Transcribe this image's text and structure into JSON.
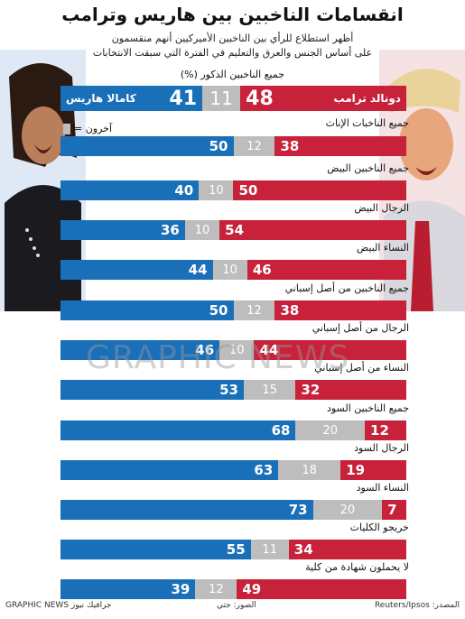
{
  "title": "انقسامات الناخبين بين هاريس وترامب",
  "subtitle_lines": [
    "أظهر استطلاع للرأي بين الناخبين الأميركيين أنهم منقسمون",
    "على أساس الجنس والعرق والتعليم في الفترة التي سبقت الانتخابات"
  ],
  "legend_other": "آخرون =",
  "watermark": "GRAPHIC NEWS",
  "footer": {
    "brand": "GRAPHIC NEWS جرافيك نيوز",
    "photos": "الصور: جتي",
    "source": "المصدر: Reuters/Ipsos"
  },
  "colors": {
    "harris": "#1a6fb9",
    "other": "#bdbdbd",
    "trump": "#c8213a"
  },
  "chart_data": {
    "type": "bar",
    "stacked": true,
    "orientation": "horizontal",
    "title": "انقسامات الناخبين بين هاريس وترامب",
    "candidate_labels": {
      "harris": "كامالا هاريس",
      "trump": "دونالد ترامب"
    },
    "categories": [
      "جميع الناخبين الذكور (%)",
      "جميع الناخبات الإناث",
      "جميع الناخبين البيض",
      "الرجال البيض",
      "النساء البيض",
      "جميع الناخبين من أصل إسباني",
      "الرجال من أصل إسباني",
      "النساء من أصل إسباني",
      "جميع الناخبين السود",
      "الرجال السود",
      "النساء السود",
      "خريجو الكليات",
      "لا يحملون شهادة من كلية"
    ],
    "series": [
      {
        "name": "كامالا هاريس",
        "values": [
          41,
          50,
          40,
          36,
          44,
          50,
          46,
          53,
          68,
          63,
          73,
          55,
          39
        ]
      },
      {
        "name": "آخرون",
        "values": [
          11,
          12,
          10,
          10,
          10,
          12,
          10,
          15,
          20,
          18,
          20,
          11,
          12
        ]
      },
      {
        "name": "دونالد ترامب",
        "values": [
          48,
          38,
          50,
          54,
          46,
          38,
          44,
          32,
          12,
          19,
          7,
          34,
          49
        ]
      }
    ]
  }
}
